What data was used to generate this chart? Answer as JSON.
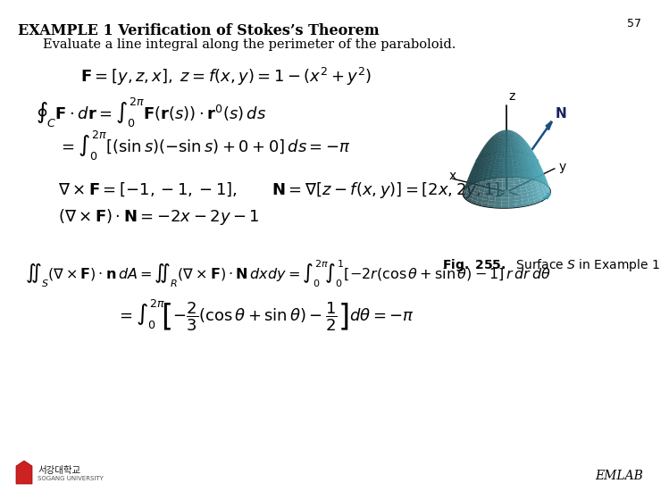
{
  "page_number": "57",
  "title": "EXAMPLE 1 Verification of Stokes’s Theorem",
  "subtitle": "Evaluate a line integral along the perimeter of the paraboloid.",
  "background_color": "#ffffff",
  "text_color": "#000000",
  "emlab_text": "EMLAB",
  "fig_caption_bold": "Fig. 255.",
  "fig_caption_rest": " Surface $S$ in Example 1",
  "paraboloid_color": "#5bc8dc",
  "paraboloid_alpha": 0.85,
  "axis_color": "#000000",
  "logo_color": "#cc2222",
  "title_fontsize": 11.5,
  "subtitle_fontsize": 10.5,
  "formula_fontsize": 13,
  "formula_fontsize_sm": 11.5,
  "caption_fontsize": 10,
  "emlab_fontsize": 10
}
